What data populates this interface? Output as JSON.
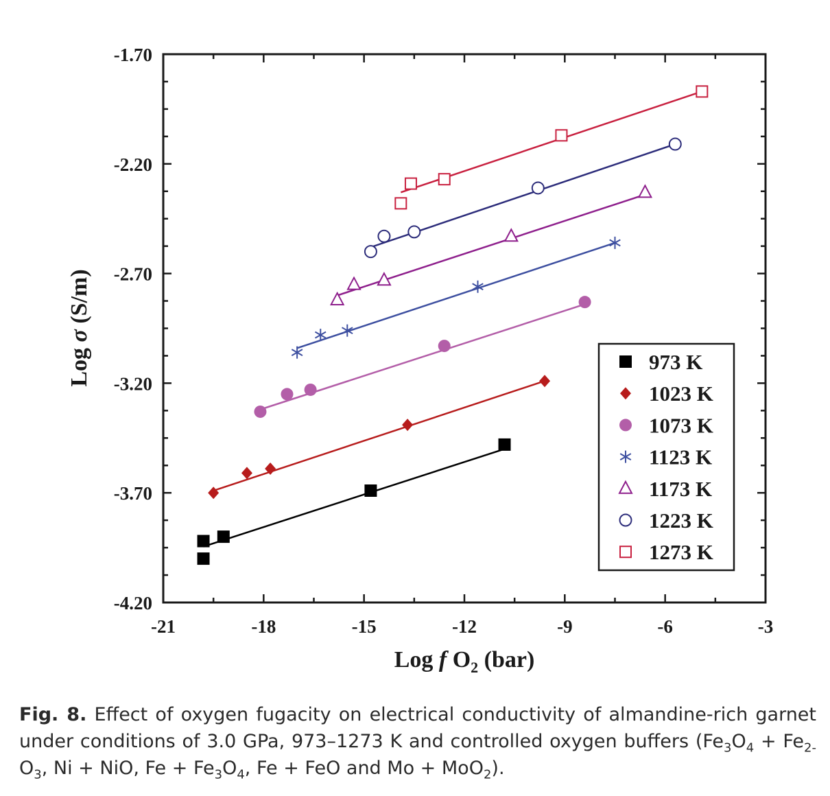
{
  "chart_data": {
    "type": "scatter",
    "xlabel": {
      "prefix": "Log ",
      "italic": "f",
      "main": " O",
      "sub": "2",
      "suffix": " (bar)"
    },
    "ylabel": {
      "prefix": "Log ",
      "italic": "σ",
      "suffix": " (S/m)"
    },
    "xlim": [
      -21,
      -3
    ],
    "ylim": [
      -4.2,
      -1.7
    ],
    "xticks": [
      -21,
      -18,
      -15,
      -12,
      -9,
      -6,
      -3
    ],
    "xtick_labels": [
      "-21",
      "-18",
      "-15",
      "-12",
      "-9",
      "-6",
      "-3"
    ],
    "yticks": [
      -1.7,
      -2.2,
      -2.7,
      -3.2,
      -3.7,
      -4.2
    ],
    "ytick_labels": [
      "-1.70",
      "-2.20",
      "-2.70",
      "-3.20",
      "-3.70",
      "-4.20"
    ],
    "legend_position": "bottom-right",
    "series": [
      {
        "name": "973 K",
        "marker": "square-filled",
        "color": "#000000",
        "x": [
          -19.8,
          -19.8,
          -19.2,
          -14.8,
          -10.8
        ],
        "y": [
          -3.92,
          -4.0,
          -3.9,
          -3.69,
          -3.48
        ],
        "fit": [
          [
            -19.8,
            -3.945
          ],
          [
            -10.8,
            -3.5
          ]
        ]
      },
      {
        "name": "1023 K",
        "marker": "diamond-filled",
        "color": "#b71c1c",
        "x": [
          -19.5,
          -18.5,
          -17.8,
          -13.7,
          -9.6
        ],
        "y": [
          -3.7,
          -3.61,
          -3.59,
          -3.39,
          -3.19
        ],
        "fit": [
          [
            -19.5,
            -3.69
          ],
          [
            -9.6,
            -3.19
          ]
        ]
      },
      {
        "name": "1073 K",
        "marker": "circle-filled",
        "color": "#b35ea8",
        "x": [
          -18.1,
          -17.3,
          -16.6,
          -12.6,
          -8.4
        ],
        "y": [
          -3.33,
          -3.25,
          -3.23,
          -3.03,
          -2.83
        ],
        "fit": [
          [
            -18.1,
            -3.32
          ],
          [
            -8.4,
            -2.84
          ]
        ]
      },
      {
        "name": "1123 K",
        "marker": "asterisk",
        "color": "#3d4fa0",
        "x": [
          -17.0,
          -16.3,
          -15.5,
          -11.6,
          -7.5
        ],
        "y": [
          -3.06,
          -2.98,
          -2.96,
          -2.76,
          -2.56
        ],
        "fit": [
          [
            -17.0,
            -3.04
          ],
          [
            -7.5,
            -2.56
          ]
        ]
      },
      {
        "name": "1173 K",
        "marker": "triangle-open",
        "color": "#8e1f8c",
        "x": [
          -15.8,
          -15.3,
          -14.4,
          -10.6,
          -6.6
        ],
        "y": [
          -2.82,
          -2.75,
          -2.73,
          -2.53,
          -2.33
        ],
        "fit": [
          [
            -15.8,
            -2.8
          ],
          [
            -6.6,
            -2.34
          ]
        ]
      },
      {
        "name": "1223 K",
        "marker": "circle-open",
        "color": "#2c2c7a",
        "x": [
          -14.8,
          -14.4,
          -13.5,
          -9.8,
          -5.7
        ],
        "y": [
          -2.6,
          -2.53,
          -2.51,
          -2.31,
          -2.11
        ],
        "fit": [
          [
            -14.8,
            -2.58
          ],
          [
            -5.7,
            -2.11
          ]
        ]
      },
      {
        "name": "1273 K",
        "marker": "square-open",
        "color": "#c8203f",
        "x": [
          -13.9,
          -13.6,
          -12.6,
          -9.1,
          -4.9
        ],
        "y": [
          -2.38,
          -2.29,
          -2.27,
          -2.07,
          -1.87
        ],
        "fit": [
          [
            -13.9,
            -2.33
          ],
          [
            -4.9,
            -1.87
          ]
        ]
      }
    ]
  },
  "caption": {
    "label": "Fig. 8.",
    "segments": [
      {
        "t": " Effect of oxygen fugacity on electrical conductivity of almandine-rich garnet under conditions of 3.0 GPa, 973–1273 K and controlled oxygen buffers (Fe"
      },
      {
        "t": "3",
        "sub": true
      },
      {
        "t": "O"
      },
      {
        "t": "4",
        "sub": true
      },
      {
        "t": " + Fe"
      },
      {
        "t": "2-",
        "sub": true
      },
      {
        "t": " O"
      },
      {
        "t": "3",
        "sub": true
      },
      {
        "t": ", Ni + NiO, Fe + Fe"
      },
      {
        "t": "3",
        "sub": true
      },
      {
        "t": "O"
      },
      {
        "t": "4",
        "sub": true
      },
      {
        "t": ", Fe + FeO and Mo + MoO"
      },
      {
        "t": "2",
        "sub": true
      },
      {
        "t": ")."
      }
    ]
  }
}
